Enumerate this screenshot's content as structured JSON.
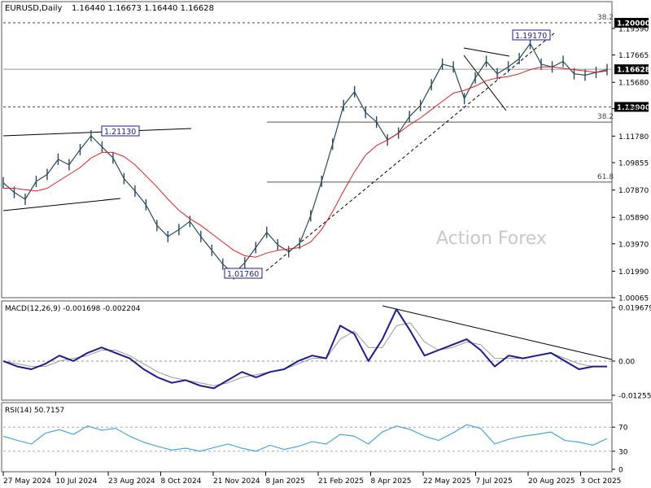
{
  "header": {
    "symbol": "EURUSD,Daily",
    "ohlc": "1.16440 1.16673 1.16440 1.16628"
  },
  "watermark": "Action Forex",
  "colors": {
    "price": "#2a4a5a",
    "ma": "#e02020",
    "macd": "#1c1c8c",
    "signal": "#9a9a9a",
    "rsi": "#3aa0e0",
    "grid": "#555555"
  },
  "chart_data": [
    {
      "type": "line",
      "panel": "price",
      "title": "EURUSD,Daily",
      "ylim": [
        1.00065,
        1.2
      ],
      "y_ticks": [
        "1.19590",
        "1.17665",
        "1.15680",
        "1.13770",
        "1.11780",
        "1.09855",
        "1.07870",
        "1.05890",
        "1.03970",
        "1.01990",
        "1.00065"
      ],
      "x_ticks": [
        "27 May 2024",
        "10 Jul 2024",
        "23 Aug 2024",
        "8 Oct 2024",
        "21 Nov 2024",
        "8 Jan 2025",
        "21 Feb 2025",
        "8 Apr 2025",
        "22 May 2025",
        "7 Jul 2025",
        "20 Aug 2025",
        "3 Oct 2025"
      ],
      "series": [
        {
          "values": [
            1.084,
            1.077,
            1.072,
            1.085,
            1.09,
            1.101,
            1.097,
            1.108,
            1.118,
            1.11,
            1.102,
            1.087,
            1.078,
            1.068,
            1.053,
            1.045,
            1.05,
            1.056,
            1.045,
            1.035,
            1.025,
            1.018,
            1.026,
            1.037,
            1.048,
            1.039,
            1.034,
            1.04,
            1.06,
            1.085,
            1.112,
            1.14,
            1.15,
            1.135,
            1.128,
            1.115,
            1.12,
            1.132,
            1.14,
            1.155,
            1.17,
            1.168,
            1.145,
            1.16,
            1.172,
            1.163,
            1.168,
            1.174,
            1.185,
            1.17,
            1.168,
            1.172,
            1.163,
            1.162,
            1.164,
            1.166
          ]
        },
        {
          "name": "MA",
          "values": [
            1.08,
            1.08,
            1.079,
            1.078,
            1.08,
            1.085,
            1.09,
            1.095,
            1.102,
            1.106,
            1.106,
            1.103,
            1.097,
            1.089,
            1.081,
            1.072,
            1.064,
            1.058,
            1.053,
            1.047,
            1.041,
            1.035,
            1.031,
            1.03,
            1.033,
            1.035,
            1.036,
            1.037,
            1.041,
            1.05,
            1.063,
            1.078,
            1.092,
            1.104,
            1.111,
            1.115,
            1.12,
            1.126,
            1.131,
            1.137,
            1.143,
            1.149,
            1.151,
            1.154,
            1.158,
            1.16,
            1.161,
            1.163,
            1.166,
            1.168,
            1.168,
            1.167,
            1.166,
            1.165,
            1.164,
            1.165
          ]
        }
      ],
      "levels": [
        {
          "label": "1.20000",
          "value": 1.2,
          "fib": "38.2"
        },
        {
          "label": "1.16628",
          "value": 1.16628
        },
        {
          "label": "1.13900",
          "value": 1.139
        },
        {
          "value": 1.128,
          "fib": "38.2"
        },
        {
          "value": 1.0845,
          "fib": "61.8"
        }
      ],
      "annotations": [
        {
          "label": "1.21130",
          "value": 1.1213
        },
        {
          "label": "1.01760",
          "value": 1.0176
        },
        {
          "label": "1.19170",
          "value": 1.1917
        }
      ]
    },
    {
      "type": "line",
      "panel": "macd",
      "title": "MACD(12,26,9) -0.001698 -0.002204",
      "ylim": [
        -0.012552,
        0.019679
      ],
      "y_ticks": [
        "0.019679",
        "0.00",
        "-0.012552"
      ],
      "series": [
        {
          "name": "MACD",
          "values": [
            0.0,
            -0.002,
            -0.003,
            -0.001,
            0.002,
            0.0,
            0.003,
            0.005,
            0.003,
            0.001,
            -0.003,
            -0.006,
            -0.008,
            -0.007,
            -0.009,
            -0.01,
            -0.007,
            -0.004,
            -0.006,
            -0.004,
            -0.003,
            0.0,
            0.002,
            0.001,
            0.013,
            0.01,
            0.0,
            0.008,
            0.019,
            0.011,
            0.002,
            0.004,
            0.006,
            0.008,
            0.004,
            -0.002,
            0.002,
            0.001,
            0.002,
            0.003,
            0.0,
            -0.003,
            -0.002,
            -0.002
          ]
        },
        {
          "name": "Signal",
          "values": [
            0.0,
            -0.001,
            -0.002,
            -0.002,
            0.0,
            0.001,
            0.002,
            0.004,
            0.004,
            0.002,
            -0.001,
            -0.004,
            -0.006,
            -0.007,
            -0.008,
            -0.009,
            -0.008,
            -0.006,
            -0.005,
            -0.004,
            -0.003,
            -0.001,
            0.001,
            0.001,
            0.008,
            0.011,
            0.005,
            0.005,
            0.013,
            0.014,
            0.007,
            0.004,
            0.005,
            0.007,
            0.006,
            0.001,
            0.001,
            0.001,
            0.002,
            0.003,
            0.001,
            -0.001,
            -0.002,
            -0.002
          ]
        }
      ]
    },
    {
      "type": "line",
      "panel": "rsi",
      "title": "RSI(14) 50.7157",
      "ylim": [
        0,
        100
      ],
      "y_ticks": [
        "70",
        "30",
        "0"
      ],
      "series": [
        {
          "name": "RSI",
          "values": [
            55,
            48,
            42,
            60,
            66,
            58,
            72,
            65,
            68,
            55,
            45,
            38,
            32,
            35,
            30,
            36,
            42,
            35,
            30,
            40,
            33,
            38,
            46,
            42,
            58,
            55,
            42,
            62,
            72,
            66,
            55,
            48,
            60,
            74,
            68,
            42,
            50,
            55,
            58,
            62,
            48,
            45,
            40,
            51
          ]
        }
      ]
    }
  ]
}
